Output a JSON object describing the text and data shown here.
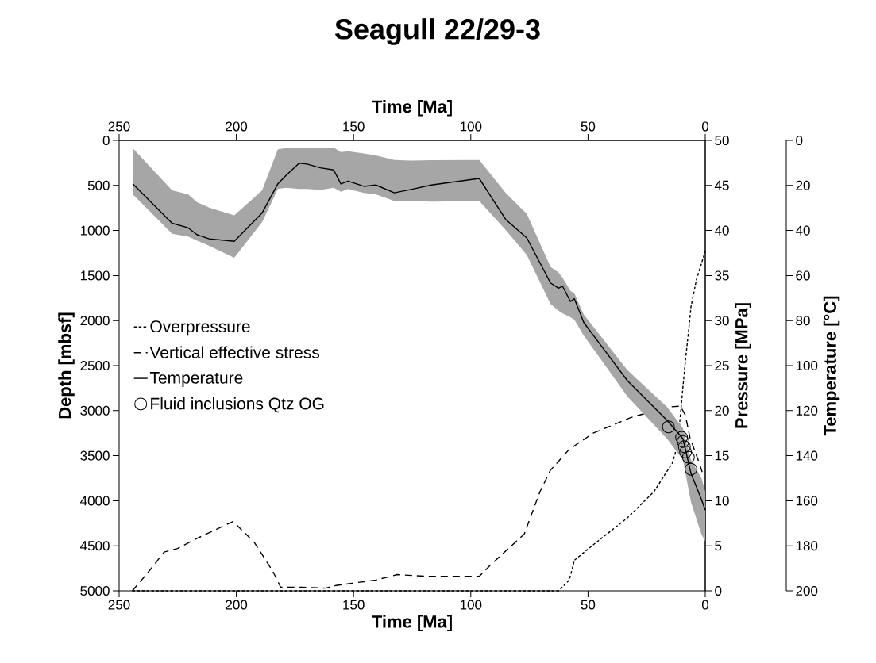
{
  "chart_data": {
    "type": "line",
    "title": "Seagull 22/29-3",
    "xlabel": "Time [Ma]",
    "x2label": "Time [Ma]",
    "ylabel": "Depth [mbsf]",
    "y2label": "Pressure [MPa]",
    "y3label": "Temperature [°C]",
    "xlim": [
      250,
      0
    ],
    "xticks": [
      250,
      200,
      150,
      100,
      50,
      0
    ],
    "x2lim": [
      250,
      0
    ],
    "x2ticks": [
      250,
      200,
      150,
      100,
      50,
      0
    ],
    "ylim": [
      5000,
      0
    ],
    "yticks": [
      0,
      500,
      1000,
      1500,
      2000,
      2500,
      3000,
      3500,
      4000,
      4500,
      5000
    ],
    "y2lim": [
      0,
      50
    ],
    "y2ticks": [
      0,
      5,
      10,
      15,
      20,
      25,
      30,
      35,
      40,
      45,
      50
    ],
    "y3lim": [
      200,
      0
    ],
    "y3ticks": [
      0,
      20,
      40,
      60,
      80,
      100,
      120,
      140,
      160,
      180,
      200
    ],
    "legend": "left",
    "grid": false,
    "series": [
      {
        "name": "Overpressure",
        "type": "line",
        "axis": "y2",
        "line_style": "dotted",
        "color": "#000000",
        "x": [
          244.4,
          200,
          150,
          100,
          62.6,
          58,
          55.8,
          47.8,
          33.2,
          21.9,
          14,
          11.7,
          9.5,
          8.4,
          7.2,
          6.1,
          3.8,
          0
        ],
        "values": [
          0,
          0,
          0,
          0,
          0,
          1.2,
          3.4,
          5.1,
          8.1,
          11,
          14.2,
          16.3,
          22.7,
          25.7,
          28.6,
          31.5,
          34.5,
          37.7
        ]
      },
      {
        "name": "Vertical effective stress",
        "type": "line",
        "axis": "y2",
        "line_style": "dashed",
        "color": "#000000",
        "x": [
          244.4,
          238.1,
          230.8,
          225.1,
          216.1,
          201.4,
          192.4,
          184.5,
          181.1,
          172.1,
          161.9,
          157.4,
          140.5,
          131.4,
          117.9,
          96.4,
          91.9,
          77.2,
          70.5,
          66,
          58,
          47.8,
          32.1,
          16.3,
          10.6,
          8.5,
          6.5,
          3,
          0.4
        ],
        "values": [
          0,
          1.9,
          4.3,
          4.7,
          5.9,
          7.7,
          5.4,
          2.2,
          0.4,
          0.4,
          0.3,
          0.6,
          1.2,
          1.8,
          1.6,
          1.6,
          2.8,
          6.3,
          11,
          13.4,
          15.7,
          17.5,
          19.2,
          20.4,
          20.5,
          19.5,
          17,
          14.5,
          12.5
        ]
      },
      {
        "name": "Temperature",
        "axis": "y3",
        "line_style": "solid",
        "color": "#000000",
        "x": [
          244.2,
          227.4,
          220.6,
          216.7,
          211.6,
          200.9,
          189,
          182.3,
          178.9,
          173.2,
          169.8,
          164.2,
          158.5,
          155.4,
          152.3,
          145.6,
          140.5,
          132.6,
          124.7,
          116.8,
          96.4,
          85.1,
          76.1,
          66,
          62.6,
          60.9,
          57.5,
          55.8,
          51.8,
          33.2,
          16.3,
          9.5,
          6.1,
          1.6,
          0
        ],
        "values": [
          19.3,
          36.8,
          38.8,
          41.9,
          43.7,
          44.8,
          32.2,
          19.3,
          15.7,
          10.1,
          10.5,
          12.2,
          13.1,
          19.3,
          18.1,
          20.4,
          19.8,
          23.3,
          21.6,
          19.8,
          16.9,
          35.1,
          43.3,
          63.3,
          65.6,
          64.7,
          71.5,
          70.3,
          80.9,
          106.7,
          124.3,
          132.5,
          147.8,
          159.5,
          164.2
        ],
        "lower": [
          3.4,
          22.2,
          23.9,
          27.5,
          29.8,
          33.3,
          22.2,
          4,
          3.4,
          3.2,
          3.4,
          3.2,
          3.2,
          5.2,
          4.8,
          5.8,
          6.7,
          8.7,
          9,
          8.8,
          8.7,
          23.3,
          32.7,
          56.2,
          58.6,
          60.9,
          66.8,
          68,
          77.4,
          102,
          118.4,
          127.8,
          141.9,
          150,
          156
        ],
        "upper": [
          23.9,
          41.5,
          42.7,
          44.5,
          46.8,
          52.1,
          36.3,
          21.6,
          21,
          21.6,
          21.6,
          22,
          21,
          22.8,
          21.6,
          23.3,
          23.9,
          26.9,
          26.9,
          27.2,
          26.9,
          39.8,
          50.9,
          72.6,
          75.6,
          76.8,
          78.5,
          79.7,
          86.7,
          113.7,
          132.5,
          141.9,
          160.6,
          175,
          178
        ]
      },
      {
        "name": "Fluid inclusions Qtz OG",
        "type": "scatter",
        "axis": "y3",
        "marker": "circle",
        "color": "#000000",
        "x": [
          15.7,
          10.1,
          9.5,
          8.9,
          8.4,
          7.2,
          6.1
        ],
        "values": [
          127.2,
          131.9,
          133.7,
          136,
          138.4,
          140.7,
          146
        ]
      }
    ]
  }
}
